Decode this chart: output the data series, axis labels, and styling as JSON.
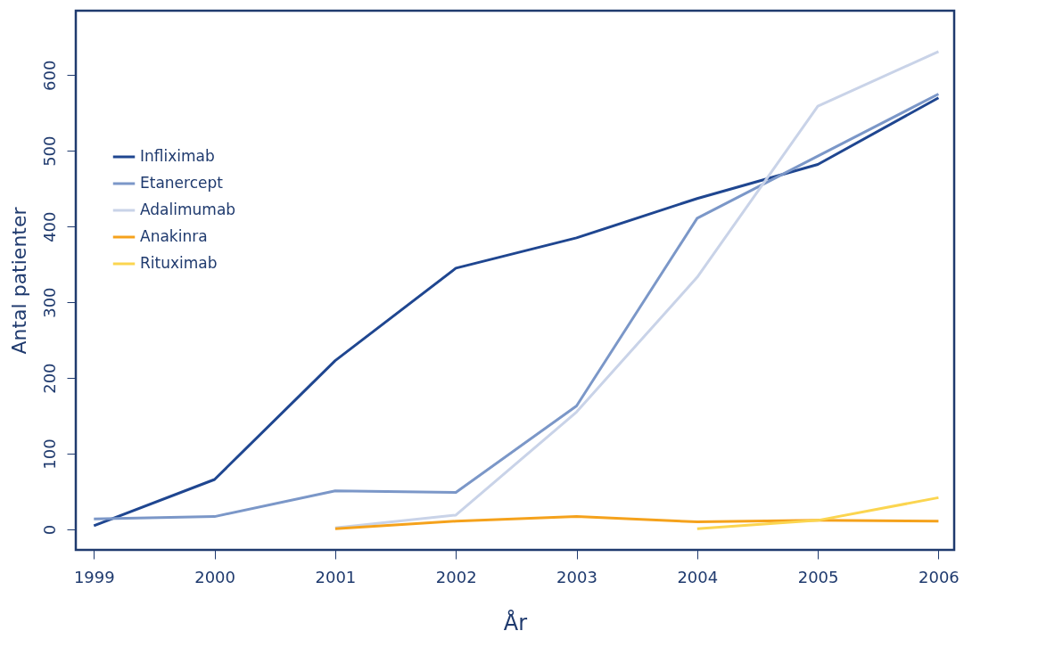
{
  "chart_data": {
    "type": "line",
    "xlabel": "År",
    "ylabel": "Antal patienter",
    "xlim": [
      1998.85,
      2006.13
    ],
    "ylim": [
      -27,
      685
    ],
    "xticks": [
      1999,
      2000,
      2001,
      2002,
      2003,
      2004,
      2005,
      2006
    ],
    "yticks": [
      0,
      100,
      200,
      300,
      400,
      500,
      600
    ],
    "grid": false,
    "legend": "top left",
    "marker": "none",
    "line_style": "solid",
    "series": [
      {
        "name": "Infliximab",
        "color": "#1f4690",
        "x": [
          1999,
          2000,
          2001,
          2002,
          2003,
          2004,
          2005,
          2006
        ],
        "values": [
          5,
          66,
          223,
          345,
          385,
          437,
          482,
          570
        ]
      },
      {
        "name": "Etanercept",
        "color": "#7b97c8",
        "x": [
          1999,
          2000,
          2001,
          2002,
          2003,
          2004,
          2005,
          2006
        ],
        "values": [
          14,
          17,
          51,
          49,
          163,
          411,
          493,
          575
        ]
      },
      {
        "name": "Adalimumab",
        "color": "#c9d3e8",
        "x": [
          2001,
          2002,
          2003,
          2004,
          2005,
          2006
        ],
        "values": [
          2,
          19,
          155,
          333,
          559,
          631
        ]
      },
      {
        "name": "Anakinra",
        "color": "#f5a21c",
        "x": [
          2001,
          2002,
          2003,
          2004,
          2005,
          2006
        ],
        "values": [
          1,
          11,
          17,
          10,
          12,
          11
        ]
      },
      {
        "name": "Rituximab",
        "color": "#fbd550",
        "x": [
          2004,
          2005,
          2006
        ],
        "values": [
          1,
          12,
          42
        ]
      }
    ]
  }
}
